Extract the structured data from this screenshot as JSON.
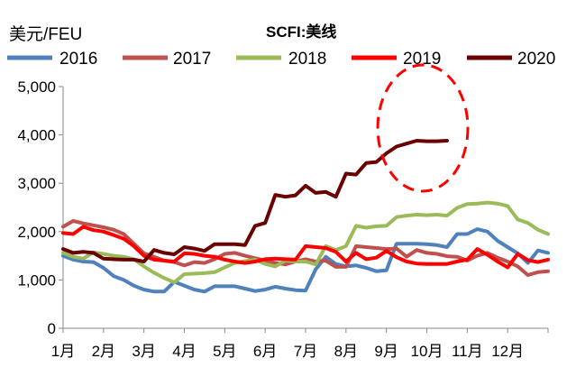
{
  "chart_data": {
    "type": "line",
    "title": "SCFI:美线",
    "ylabel": "美元/FEU",
    "xlabel": "",
    "ylim": [
      0,
      5000
    ],
    "y_ticks": [
      "5,000",
      "4,000",
      "3,000",
      "2,000",
      "1,000",
      "0"
    ],
    "y_tick_values": [
      5000,
      4000,
      3000,
      2000,
      1000,
      0
    ],
    "categories": [
      "1月",
      "2月",
      "3月",
      "4月",
      "5月",
      "6月",
      "7月",
      "8月",
      "9月",
      "10月",
      "11月",
      "12月"
    ],
    "grid": false,
    "legend_position": "top",
    "annotation": "red dashed ellipse around recent 2020 peak",
    "series": [
      {
        "name": "2016",
        "color": "#4F81BD",
        "points": [
          [
            1.0,
            1500
          ],
          [
            1.25,
            1420
          ],
          [
            1.5,
            1380
          ],
          [
            1.75,
            1370
          ],
          [
            2.0,
            1250
          ],
          [
            2.25,
            1080
          ],
          [
            2.5,
            1000
          ],
          [
            2.75,
            880
          ],
          [
            3.0,
            800
          ],
          [
            3.25,
            760
          ],
          [
            3.5,
            760
          ],
          [
            3.75,
            960
          ],
          [
            4.0,
            880
          ],
          [
            4.25,
            800
          ],
          [
            4.5,
            760
          ],
          [
            4.75,
            870
          ],
          [
            5.0,
            870
          ],
          [
            5.25,
            870
          ],
          [
            5.5,
            820
          ],
          [
            5.75,
            770
          ],
          [
            6.0,
            800
          ],
          [
            6.25,
            860
          ],
          [
            6.5,
            820
          ],
          [
            6.75,
            790
          ],
          [
            7.0,
            780
          ],
          [
            7.25,
            1220
          ],
          [
            7.5,
            1480
          ],
          [
            7.75,
            1330
          ],
          [
            8.0,
            1280
          ],
          [
            8.25,
            1300
          ],
          [
            8.5,
            1250
          ],
          [
            8.75,
            1180
          ],
          [
            9.0,
            1200
          ],
          [
            9.25,
            1750
          ],
          [
            9.5,
            1750
          ],
          [
            9.75,
            1750
          ],
          [
            10.0,
            1740
          ],
          [
            10.25,
            1720
          ],
          [
            10.5,
            1680
          ],
          [
            10.75,
            1950
          ],
          [
            11.0,
            1950
          ],
          [
            11.25,
            2050
          ],
          [
            11.5,
            2000
          ],
          [
            11.75,
            1810
          ],
          [
            12.0,
            1680
          ],
          [
            12.25,
            1550
          ],
          [
            12.5,
            1350
          ],
          [
            12.75,
            1610
          ],
          [
            13.0,
            1560
          ]
        ]
      },
      {
        "name": "2017",
        "color": "#C0504D",
        "points": [
          [
            1.0,
            2100
          ],
          [
            1.25,
            2220
          ],
          [
            1.5,
            2170
          ],
          [
            1.75,
            2130
          ],
          [
            2.0,
            2090
          ],
          [
            2.25,
            2040
          ],
          [
            2.5,
            1950
          ],
          [
            2.75,
            1750
          ],
          [
            3.0,
            1550
          ],
          [
            3.25,
            1480
          ],
          [
            3.5,
            1400
          ],
          [
            3.75,
            1370
          ],
          [
            4.0,
            1300
          ],
          [
            4.25,
            1370
          ],
          [
            4.5,
            1350
          ],
          [
            4.75,
            1430
          ],
          [
            5.0,
            1540
          ],
          [
            5.25,
            1560
          ],
          [
            5.5,
            1500
          ],
          [
            5.75,
            1450
          ],
          [
            6.0,
            1400
          ],
          [
            6.25,
            1350
          ],
          [
            6.5,
            1320
          ],
          [
            6.75,
            1380
          ],
          [
            7.0,
            1430
          ],
          [
            7.25,
            1380
          ],
          [
            7.5,
            1400
          ],
          [
            7.75,
            1270
          ],
          [
            8.0,
            1270
          ],
          [
            8.25,
            1700
          ],
          [
            8.5,
            1680
          ],
          [
            8.75,
            1660
          ],
          [
            9.0,
            1640
          ],
          [
            9.25,
            1650
          ],
          [
            9.5,
            1480
          ],
          [
            9.75,
            1620
          ],
          [
            10.0,
            1560
          ],
          [
            10.25,
            1540
          ],
          [
            10.5,
            1490
          ],
          [
            10.75,
            1480
          ],
          [
            11.0,
            1400
          ],
          [
            11.25,
            1500
          ],
          [
            11.5,
            1560
          ],
          [
            11.75,
            1460
          ],
          [
            12.0,
            1380
          ],
          [
            12.25,
            1280
          ],
          [
            12.5,
            1100
          ],
          [
            12.75,
            1160
          ],
          [
            13.0,
            1180
          ]
        ]
      },
      {
        "name": "2018",
        "color": "#9BBB59",
        "points": [
          [
            1.0,
            1560
          ],
          [
            1.25,
            1480
          ],
          [
            1.5,
            1440
          ],
          [
            1.75,
            1570
          ],
          [
            2.0,
            1540
          ],
          [
            2.25,
            1500
          ],
          [
            2.5,
            1480
          ],
          [
            2.75,
            1430
          ],
          [
            3.0,
            1280
          ],
          [
            3.25,
            1150
          ],
          [
            3.5,
            1040
          ],
          [
            3.75,
            950
          ],
          [
            4.0,
            1120
          ],
          [
            4.25,
            1130
          ],
          [
            4.5,
            1140
          ],
          [
            4.75,
            1160
          ],
          [
            5.0,
            1260
          ],
          [
            5.25,
            1350
          ],
          [
            5.5,
            1390
          ],
          [
            5.75,
            1420
          ],
          [
            6.0,
            1330
          ],
          [
            6.25,
            1280
          ],
          [
            6.5,
            1400
          ],
          [
            6.75,
            1380
          ],
          [
            7.0,
            1380
          ],
          [
            7.25,
            1320
          ],
          [
            7.5,
            1700
          ],
          [
            7.75,
            1620
          ],
          [
            8.0,
            1700
          ],
          [
            8.25,
            2120
          ],
          [
            8.5,
            2080
          ],
          [
            8.75,
            2110
          ],
          [
            9.0,
            2120
          ],
          [
            9.25,
            2300
          ],
          [
            9.5,
            2330
          ],
          [
            9.75,
            2350
          ],
          [
            10.0,
            2340
          ],
          [
            10.25,
            2350
          ],
          [
            10.5,
            2330
          ],
          [
            10.75,
            2490
          ],
          [
            11.0,
            2570
          ],
          [
            11.25,
            2580
          ],
          [
            11.5,
            2600
          ],
          [
            11.75,
            2580
          ],
          [
            12.0,
            2530
          ],
          [
            12.25,
            2250
          ],
          [
            12.5,
            2180
          ],
          [
            12.75,
            2040
          ],
          [
            13.0,
            1950
          ]
        ]
      },
      {
        "name": "2019",
        "color": "#FF0000",
        "points": [
          [
            1.0,
            1970
          ],
          [
            1.25,
            1950
          ],
          [
            1.5,
            2100
          ],
          [
            1.75,
            2030
          ],
          [
            2.0,
            2000
          ],
          [
            2.25,
            1930
          ],
          [
            2.5,
            1850
          ],
          [
            2.75,
            1700
          ],
          [
            3.0,
            1500
          ],
          [
            3.25,
            1420
          ],
          [
            3.5,
            1400
          ],
          [
            3.75,
            1380
          ],
          [
            4.0,
            1550
          ],
          [
            4.25,
            1540
          ],
          [
            4.5,
            1500
          ],
          [
            4.75,
            1480
          ],
          [
            5.0,
            1420
          ],
          [
            5.25,
            1380
          ],
          [
            5.5,
            1350
          ],
          [
            5.75,
            1380
          ],
          [
            6.0,
            1430
          ],
          [
            6.25,
            1440
          ],
          [
            6.5,
            1430
          ],
          [
            6.75,
            1420
          ],
          [
            7.0,
            1700
          ],
          [
            7.25,
            1680
          ],
          [
            7.5,
            1660
          ],
          [
            7.75,
            1580
          ],
          [
            8.0,
            1380
          ],
          [
            8.25,
            1560
          ],
          [
            8.5,
            1430
          ],
          [
            8.75,
            1460
          ],
          [
            9.0,
            1600
          ],
          [
            9.25,
            1470
          ],
          [
            9.5,
            1380
          ],
          [
            9.75,
            1340
          ],
          [
            10.0,
            1330
          ],
          [
            10.25,
            1330
          ],
          [
            10.5,
            1330
          ],
          [
            10.75,
            1380
          ],
          [
            11.0,
            1420
          ],
          [
            11.25,
            1640
          ],
          [
            11.5,
            1520
          ],
          [
            11.75,
            1380
          ],
          [
            12.0,
            1260
          ],
          [
            12.25,
            1540
          ],
          [
            12.5,
            1410
          ],
          [
            12.75,
            1370
          ],
          [
            13.0,
            1420
          ]
        ]
      },
      {
        "name": "2020",
        "color": "#6B0000",
        "points": [
          [
            1.0,
            1640
          ],
          [
            1.25,
            1560
          ],
          [
            1.5,
            1580
          ],
          [
            1.75,
            1560
          ],
          [
            2.0,
            1440
          ],
          [
            2.25,
            1430
          ],
          [
            2.5,
            1420
          ],
          [
            2.75,
            1420
          ],
          [
            3.0,
            1380
          ],
          [
            3.25,
            1620
          ],
          [
            3.5,
            1560
          ],
          [
            3.75,
            1530
          ],
          [
            4.0,
            1680
          ],
          [
            4.25,
            1650
          ],
          [
            4.5,
            1600
          ],
          [
            4.75,
            1740
          ],
          [
            5.0,
            1740
          ],
          [
            5.25,
            1740
          ],
          [
            5.5,
            1720
          ],
          [
            5.75,
            2120
          ],
          [
            6.0,
            2180
          ],
          [
            6.25,
            2760
          ],
          [
            6.5,
            2720
          ],
          [
            6.75,
            2750
          ],
          [
            7.0,
            2950
          ],
          [
            7.25,
            2800
          ],
          [
            7.5,
            2820
          ],
          [
            7.75,
            2720
          ],
          [
            8.0,
            3200
          ],
          [
            8.25,
            3180
          ],
          [
            8.5,
            3420
          ],
          [
            8.75,
            3440
          ],
          [
            9.0,
            3620
          ],
          [
            9.25,
            3760
          ],
          [
            9.5,
            3820
          ],
          [
            9.75,
            3880
          ],
          [
            10.0,
            3870
          ],
          [
            10.25,
            3870
          ],
          [
            10.5,
            3880
          ]
        ]
      }
    ]
  }
}
